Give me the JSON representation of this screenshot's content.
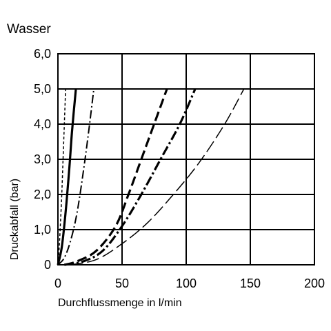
{
  "chart_data": {
    "type": "line",
    "title": "Wasser",
    "xlabel": "Durchflussmenge in l/min",
    "ylabel": "Druckabfall (bar)",
    "xlim": [
      0,
      200
    ],
    "ylim": [
      0,
      6
    ],
    "x_ticks": [
      "0",
      "50",
      "100",
      "150",
      "200"
    ],
    "y_ticks": [
      "0",
      "1,0",
      "2,0",
      "3,0",
      "4,0",
      "5,0",
      "6,0"
    ],
    "grid": true,
    "series": [
      {
        "line_style": "thin-dashed",
        "color": "#000000",
        "points": [
          [
            0,
            0
          ],
          [
            1,
            0.5
          ],
          [
            2,
            1.2
          ],
          [
            3,
            2.0
          ],
          [
            4,
            3.0
          ],
          [
            5,
            4.0
          ],
          [
            6,
            5.0
          ]
        ]
      },
      {
        "line_style": "thick-solid",
        "color": "#000000",
        "points": [
          [
            0,
            0
          ],
          [
            3,
            0.5
          ],
          [
            6,
            1.5
          ],
          [
            9,
            2.8
          ],
          [
            11,
            3.8
          ],
          [
            14,
            5.0
          ]
        ]
      },
      {
        "line_style": "dash-dot",
        "color": "#000000",
        "points": [
          [
            0,
            0
          ],
          [
            5,
            0.2
          ],
          [
            10,
            0.7
          ],
          [
            15,
            1.5
          ],
          [
            20,
            2.7
          ],
          [
            24,
            3.8
          ],
          [
            28,
            5.0
          ]
        ]
      },
      {
        "line_style": "thick-dashed",
        "color": "#000000",
        "points": [
          [
            5,
            0
          ],
          [
            15,
            0.1
          ],
          [
            30,
            0.4
          ],
          [
            45,
            1.1
          ],
          [
            55,
            2.0
          ],
          [
            65,
            3.0
          ],
          [
            75,
            4.0
          ],
          [
            85,
            5.0
          ]
        ]
      },
      {
        "line_style": "thick-dash-dot",
        "color": "#000000",
        "points": [
          [
            5,
            0
          ],
          [
            20,
            0.1
          ],
          [
            35,
            0.4
          ],
          [
            50,
            1.1
          ],
          [
            65,
            2.0
          ],
          [
            80,
            3.0
          ],
          [
            95,
            4.0
          ],
          [
            107,
            5.0
          ]
        ]
      },
      {
        "line_style": "thin-long-dash",
        "color": "#000000",
        "points": [
          [
            10,
            0
          ],
          [
            30,
            0.15
          ],
          [
            50,
            0.6
          ],
          [
            70,
            1.2
          ],
          [
            90,
            2.0
          ],
          [
            110,
            2.9
          ],
          [
            130,
            4.0
          ],
          [
            145,
            5.0
          ]
        ]
      }
    ]
  }
}
